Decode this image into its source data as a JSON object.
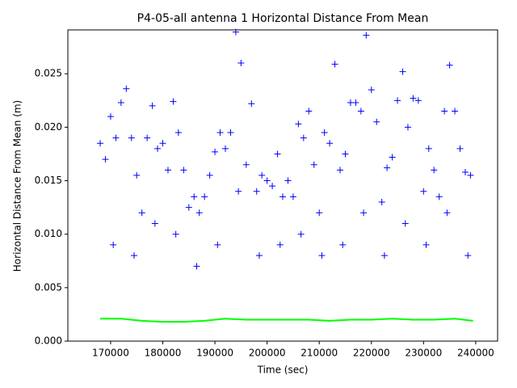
{
  "chart_data": {
    "type": "scatter",
    "title": "P4-05-all antenna 1 Horizontal Distance From Mean",
    "x_label": "Time (sec)",
    "y_label": "Horizontal Distance From Mean (m)",
    "xlim": [
      161800,
      244200
    ],
    "ylim": [
      0,
      0.0291
    ],
    "xticks": [
      170000,
      180000,
      190000,
      200000,
      210000,
      220000,
      230000,
      240000
    ],
    "yticks": [
      {
        "value": 0,
        "label": "0.000"
      },
      0.005,
      {
        "value": 0.01,
        "label": "0.010"
      },
      0.015,
      {
        "value": 0.02,
        "label": "0.020"
      },
      0.025
    ],
    "series": [
      {
        "color": "#0000ff",
        "marker": "plus",
        "x": [
          168000,
          169000,
          170000,
          171000,
          172000,
          173000,
          174000,
          175000,
          176000,
          177000,
          178000,
          179000,
          180000,
          181000,
          182000,
          183000,
          184000,
          185000,
          186000,
          187000,
          188000,
          189000,
          190000,
          191000,
          192000,
          193000,
          194000,
          195000,
          196000,
          197000,
          198000,
          199000,
          200000,
          201000,
          202000,
          203000,
          204000,
          205000,
          206000,
          207000,
          208000,
          209000,
          210000,
          211000,
          212000,
          213000,
          214000,
          215000,
          216000,
          217000,
          218000,
          219000,
          220000,
          221000,
          222000,
          223000,
          224000,
          225000,
          226000,
          227000,
          228000,
          229000,
          230000,
          231000,
          232000,
          233000,
          234000,
          235000,
          236000,
          237000,
          238000,
          239000,
          170500,
          174500,
          178500,
          182500,
          186500,
          190500,
          194500,
          198500,
          202500,
          206500,
          210500,
          214500,
          218500,
          222500,
          226500,
          230500,
          234500,
          238500
        ],
        "values": [
          0.0185,
          0.017,
          0.021,
          0.019,
          0.0223,
          0.0236,
          0.019,
          0.0155,
          0.012,
          0.019,
          0.022,
          0.018,
          0.0185,
          0.016,
          0.0224,
          0.0195,
          0.016,
          0.0125,
          0.0135,
          0.012,
          0.0135,
          0.0155,
          0.0177,
          0.0195,
          0.018,
          0.0195,
          0.0289,
          0.026,
          0.0165,
          0.0222,
          0.014,
          0.0155,
          0.015,
          0.0145,
          0.0175,
          0.0135,
          0.015,
          0.0135,
          0.0203,
          0.019,
          0.0215,
          0.0165,
          0.012,
          0.0195,
          0.0185,
          0.0259,
          0.016,
          0.0175,
          0.0223,
          0.0223,
          0.0215,
          0.0286,
          0.0235,
          0.0205,
          0.013,
          0.0162,
          0.0172,
          0.0225,
          0.0252,
          0.02,
          0.0227,
          0.0225,
          0.014,
          0.018,
          0.016,
          0.0135,
          0.0215,
          0.0258,
          0.0215,
          0.018,
          0.0158,
          0.0155,
          0.009,
          0.008,
          0.011,
          0.01,
          0.007,
          0.009,
          0.014,
          0.008,
          0.009,
          0.01,
          0.008,
          0.009,
          0.012,
          0.008,
          0.011,
          0.009,
          0.012,
          0.008
        ]
      },
      {
        "color": "#00ff00",
        "marker": "line",
        "x": [
          168000,
          172000,
          176000,
          180000,
          184000,
          188000,
          192000,
          196000,
          200000,
          204000,
          208000,
          212000,
          216000,
          220000,
          224000,
          228000,
          232000,
          236000,
          239500
        ],
        "values": [
          0.0021,
          0.0021,
          0.0019,
          0.0018,
          0.0018,
          0.0019,
          0.0021,
          0.002,
          0.002,
          0.002,
          0.002,
          0.0019,
          0.002,
          0.002,
          0.0021,
          0.002,
          0.002,
          0.0021,
          0.0019
        ]
      }
    ]
  }
}
